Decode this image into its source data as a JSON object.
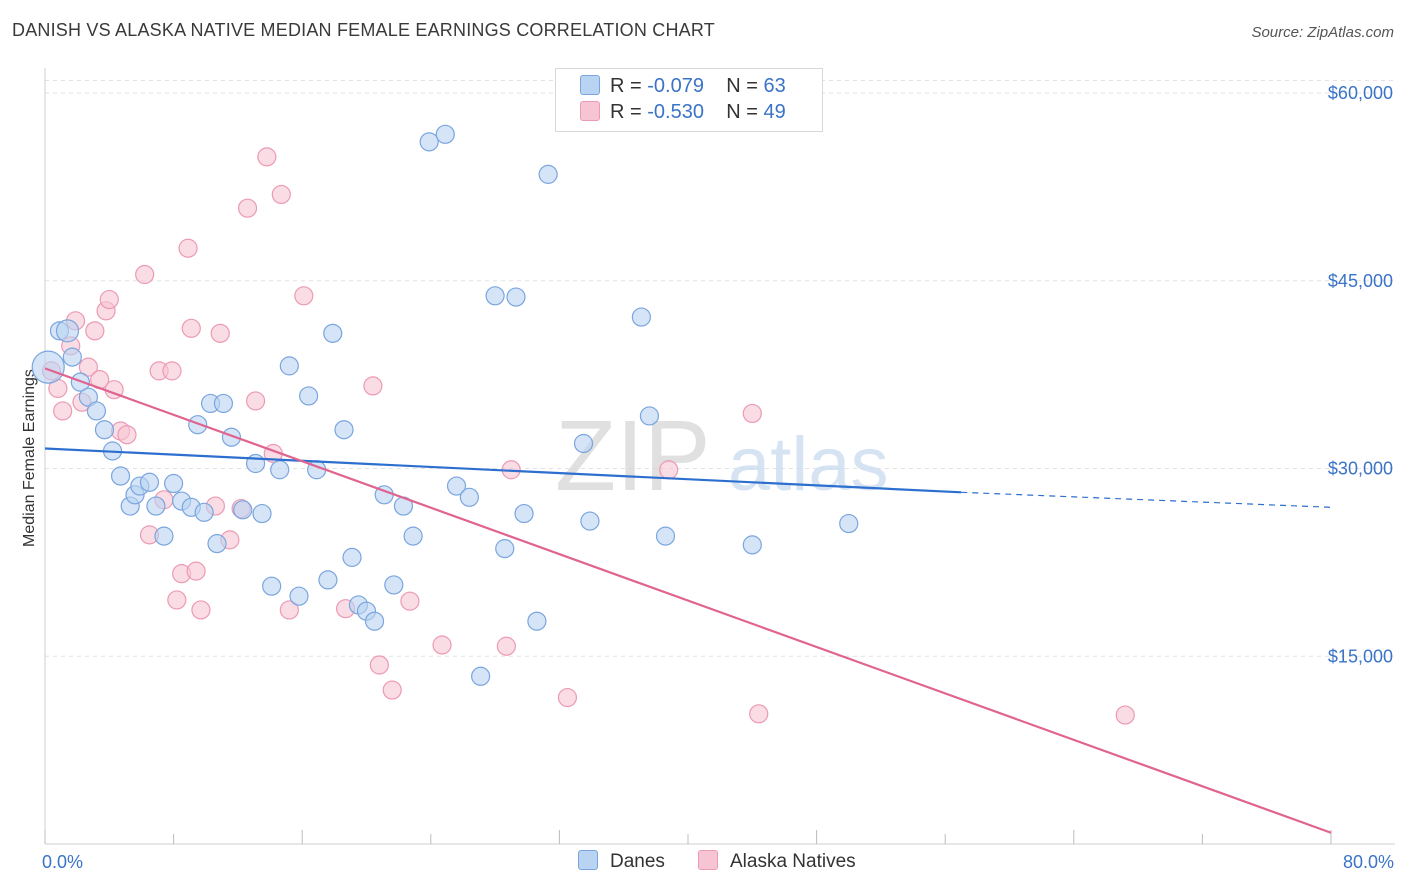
{
  "title": "DANISH VS ALASKA NATIVE MEDIAN FEMALE EARNINGS CORRELATION CHART",
  "source": "Source: ZipAtlas.com",
  "watermark": {
    "zip": "ZIP",
    "atlas": "atlas"
  },
  "legend": {
    "r_label": "R =",
    "n_label": "N =",
    "danes": {
      "r": "-0.079",
      "n": "63"
    },
    "alaska": {
      "r": "-0.530",
      "n": "49"
    }
  },
  "bottom_legend": {
    "danes": "Danes",
    "alaska": "Alaska Natives"
  },
  "colors": {
    "danes_fill": "#b9d3f2",
    "danes_stroke": "#7aa5de",
    "danes_line": "#2d6fcf",
    "alaska_fill": "#f7c4d3",
    "alaska_stroke": "#ec9ab4",
    "alaska_line": "#e0648f",
    "tick_text": "#3a73c7"
  },
  "chart_data": {
    "type": "scatter",
    "xlabel": "",
    "ylabel": "Median Female Earnings",
    "xlim": [
      0,
      80
    ],
    "ylim": [
      0,
      62000
    ],
    "x_tick_labels": [
      "0.0%",
      "80.0%"
    ],
    "y_ticks": [
      {
        "value": 15000,
        "label": "$15,000"
      },
      {
        "value": 30000,
        "label": "$30,000"
      },
      {
        "value": 45000,
        "label": "$45,000"
      },
      {
        "value": 60000,
        "label": "$60,000"
      }
    ],
    "series": [
      {
        "name": "Danes",
        "r": -0.079,
        "n": 63,
        "trend": {
          "x0": 0,
          "y0": 31600,
          "x1": 57,
          "y1": 28100,
          "dash_to_x": 80,
          "dash_to_y": 26900
        },
        "points": [
          [
            0.2,
            38100
          ],
          [
            0.9,
            41000
          ],
          [
            1.7,
            38900
          ],
          [
            2.2,
            36900
          ],
          [
            2.7,
            35700
          ],
          [
            3.2,
            34600
          ],
          [
            3.7,
            33100
          ],
          [
            4.2,
            31400
          ],
          [
            4.7,
            29400
          ],
          [
            5.3,
            27000
          ],
          [
            5.6,
            27900
          ],
          [
            5.9,
            28600
          ],
          [
            6.5,
            28900
          ],
          [
            6.9,
            27000
          ],
          [
            7.4,
            24600
          ],
          [
            8.0,
            28800
          ],
          [
            8.5,
            27400
          ],
          [
            9.1,
            26900
          ],
          [
            9.5,
            33500
          ],
          [
            9.9,
            26500
          ],
          [
            10.3,
            35200
          ],
          [
            10.7,
            24000
          ],
          [
            11.1,
            35200
          ],
          [
            11.6,
            32500
          ],
          [
            12.3,
            26700
          ],
          [
            13.1,
            30400
          ],
          [
            13.5,
            26400
          ],
          [
            14.1,
            20600
          ],
          [
            14.6,
            29900
          ],
          [
            15.2,
            38200
          ],
          [
            15.8,
            19800
          ],
          [
            16.4,
            35800
          ],
          [
            16.9,
            29900
          ],
          [
            17.6,
            21100
          ],
          [
            17.9,
            40800
          ],
          [
            18.6,
            33100
          ],
          [
            19.1,
            22900
          ],
          [
            19.5,
            19100
          ],
          [
            20.0,
            18600
          ],
          [
            20.5,
            17800
          ],
          [
            21.1,
            27900
          ],
          [
            21.7,
            20700
          ],
          [
            22.3,
            27000
          ],
          [
            22.9,
            24600
          ],
          [
            23.9,
            56100
          ],
          [
            24.9,
            56700
          ],
          [
            25.6,
            28600
          ],
          [
            26.4,
            27700
          ],
          [
            27.1,
            13400
          ],
          [
            28.0,
            43800
          ],
          [
            28.6,
            23600
          ],
          [
            29.3,
            43700
          ],
          [
            29.8,
            26400
          ],
          [
            30.6,
            17800
          ],
          [
            31.3,
            53500
          ],
          [
            33.5,
            32000
          ],
          [
            33.9,
            25800
          ],
          [
            37.1,
            42100
          ],
          [
            37.6,
            34200
          ],
          [
            38.6,
            24600
          ],
          [
            44.0,
            23900
          ],
          [
            50.0,
            25600
          ],
          [
            1.4,
            41000
          ]
        ]
      },
      {
        "name": "Alaska Natives",
        "r": -0.53,
        "n": 49,
        "trend": {
          "x0": 0,
          "y0": 38000,
          "x1": 80,
          "y1": 900
        },
        "points": [
          [
            0.4,
            37800
          ],
          [
            0.8,
            36400
          ],
          [
            1.1,
            34600
          ],
          [
            1.6,
            39800
          ],
          [
            1.9,
            41800
          ],
          [
            2.3,
            35300
          ],
          [
            2.7,
            38100
          ],
          [
            3.1,
            41000
          ],
          [
            3.4,
            37100
          ],
          [
            3.8,
            42600
          ],
          [
            4.0,
            43500
          ],
          [
            4.3,
            36300
          ],
          [
            4.7,
            33000
          ],
          [
            5.1,
            32700
          ],
          [
            6.2,
            45500
          ],
          [
            6.5,
            24700
          ],
          [
            7.1,
            37800
          ],
          [
            7.4,
            27500
          ],
          [
            7.9,
            37800
          ],
          [
            8.2,
            19500
          ],
          [
            8.5,
            21600
          ],
          [
            8.9,
            47600
          ],
          [
            9.1,
            41200
          ],
          [
            9.4,
            21800
          ],
          [
            9.7,
            18700
          ],
          [
            10.6,
            27000
          ],
          [
            10.9,
            40800
          ],
          [
            11.5,
            24300
          ],
          [
            12.2,
            26800
          ],
          [
            12.6,
            50800
          ],
          [
            13.1,
            35400
          ],
          [
            13.8,
            54900
          ],
          [
            14.2,
            31200
          ],
          [
            14.7,
            51900
          ],
          [
            15.2,
            18700
          ],
          [
            16.1,
            43800
          ],
          [
            18.7,
            18800
          ],
          [
            20.4,
            36600
          ],
          [
            20.8,
            14300
          ],
          [
            21.6,
            12300
          ],
          [
            22.7,
            19400
          ],
          [
            24.7,
            15900
          ],
          [
            28.7,
            15800
          ],
          [
            29.0,
            29900
          ],
          [
            32.5,
            11700
          ],
          [
            38.8,
            29900
          ],
          [
            44.0,
            34400
          ],
          [
            44.4,
            10400
          ],
          [
            67.2,
            10300
          ]
        ]
      }
    ]
  }
}
